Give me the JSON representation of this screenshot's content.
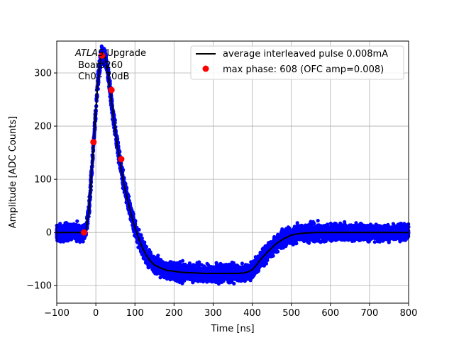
{
  "chart_data": {
    "type": "scatter",
    "xlabel": "Time [ns]",
    "ylabel": "Amplitude [ADC Counts]",
    "xlim": [
      -100,
      800
    ],
    "ylim": [
      -133,
      360
    ],
    "x_ticks": [
      -100,
      0,
      100,
      200,
      300,
      400,
      500,
      600,
      700,
      800
    ],
    "y_ticks": [
      -100,
      0,
      100,
      200,
      300
    ],
    "grid": true,
    "legend_placement": "top-right",
    "annotation": {
      "line1_italic": "ATLAS",
      "line1_rest": " Upgrade",
      "line2": " Board260",
      "line3": " Ch0 - 70dB"
    },
    "series": [
      {
        "name": "average interleaved pulse 0.008mA",
        "kind": "line",
        "color": "#000000",
        "x": [
          -100,
          -60,
          -40,
          -32,
          -25,
          -18,
          -12,
          -6,
          0,
          6,
          12,
          18,
          24,
          30,
          36,
          42,
          48,
          54,
          60,
          66,
          72,
          80,
          90,
          100,
          110,
          120,
          130,
          140,
          150,
          160,
          170,
          180,
          200,
          220,
          250,
          280,
          300,
          330,
          360,
          380,
          390,
          400,
          410,
          420,
          440,
          460,
          480,
          500,
          520,
          540,
          560,
          600,
          650,
          700,
          750,
          800
        ],
        "y": [
          0,
          0,
          0,
          0,
          5,
          40,
          100,
          165,
          230,
          290,
          325,
          338,
          330,
          305,
          270,
          235,
          200,
          168,
          140,
          115,
          90,
          65,
          35,
          10,
          -12,
          -30,
          -44,
          -54,
          -61,
          -65,
          -68,
          -71,
          -73,
          -75,
          -76,
          -77,
          -77,
          -77,
          -77,
          -76,
          -74,
          -70,
          -62,
          -52,
          -36,
          -22,
          -12,
          -5,
          -2,
          -1,
          0,
          0,
          0,
          0,
          0,
          0
        ]
      },
      {
        "name": "max phase: 608 (OFC amp=0.008)",
        "kind": "points",
        "color": "#ff0000",
        "x": [
          -30,
          -6,
          16,
          40,
          65
        ],
        "y": [
          0,
          170,
          333,
          268,
          138
        ]
      },
      {
        "kind": "scatter-band",
        "color": "#0000ff",
        "noise": 14
      }
    ]
  }
}
